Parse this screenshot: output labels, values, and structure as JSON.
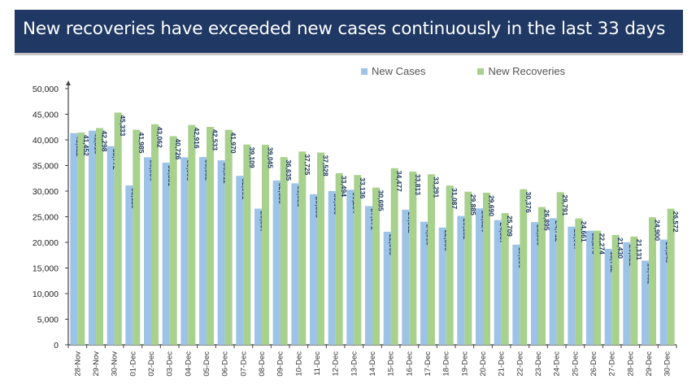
{
  "header": {
    "title": "New recoveries have exceeded new cases continuously in the last 33 days"
  },
  "colors": {
    "banner": "#1f3864",
    "new_cases": "#9dc3e6",
    "new_recoveries": "#a9d18e",
    "data_label": "#1f3864"
  },
  "chart_data": {
    "type": "bar",
    "title": "New recoveries have exceeded new cases continuously in the last 33 days",
    "xlabel": "",
    "ylabel": "",
    "ylim": [
      0,
      50000
    ],
    "yticks": [
      0,
      5000,
      10000,
      15000,
      20000,
      25000,
      30000,
      35000,
      40000,
      45000,
      50000
    ],
    "ytick_labels": [
      "0",
      "5,000",
      "10,000",
      "15,000",
      "20,000",
      "25,000",
      "30,000",
      "35,000",
      "40,000",
      "45,000",
      "50,000"
    ],
    "grid": false,
    "legend_position": "top-right",
    "categories": [
      "28-Nov",
      "29-Nov",
      "30-Nov",
      "01-Dec",
      "02-Dec",
      "03-Dec",
      "04-Dec",
      "05-Dec",
      "06-Dec",
      "07-Dec",
      "08-Dec",
      "09-Dec",
      "10-Dec",
      "11-Dec",
      "12-Dec",
      "13-Dec",
      "14-Dec",
      "15-Dec",
      "16-Dec",
      "17-Dec",
      "18-Dec",
      "19-Dec",
      "20-Dec",
      "21-Dec",
      "22-Dec",
      "23-Dec",
      "24-Dec",
      "25-Dec",
      "26-Dec",
      "27-Dec",
      "28-Dec",
      "29-Dec",
      "30-Dec"
    ],
    "series": [
      {
        "name": "New Cases",
        "values": [
          41322,
          41810,
          38772,
          31118,
          36604,
          35551,
          36595,
          36652,
          36011,
          32981,
          26567,
          32080,
          31521,
          29398,
          30006,
          30254,
          27071,
          22065,
          26382,
          24010,
          22890,
          25152,
          26624,
          24337,
          19556,
          23950,
          24712,
          23067,
          22273,
          18732,
          20021,
          16432,
          20549
        ],
        "labels": [
          "41,322",
          "41,810",
          "38,772",
          "31,118",
          "36,604",
          "35,551",
          "36,595",
          "36,652",
          "36,011",
          "32,981",
          "26,567",
          "32,080",
          "31,521",
          "29,398",
          "30,006",
          "30,254",
          "27,071",
          "22,065",
          "26,382",
          "24,010",
          "22,890",
          "25,152",
          "26,624",
          "24,337",
          "19,556",
          "23,950",
          "24,712",
          "23,067",
          "22,273",
          "18,732",
          "20,021",
          "16,432",
          "20,549"
        ]
      },
      {
        "name": "New Recoveries",
        "values": [
          41452,
          42298,
          45333,
          41985,
          43062,
          40726,
          42916,
          42533,
          41970,
          39109,
          39045,
          36635,
          37725,
          37528,
          33494,
          33136,
          30695,
          34477,
          33813,
          33291,
          31087,
          29885,
          29690,
          25709,
          30376,
          26895,
          29791,
          24661,
          22274,
          21430,
          21131,
          24900,
          26572
        ],
        "labels": [
          "41,452",
          "42,298",
          "45,333",
          "41,985",
          "43,062",
          "40,726",
          "42,916",
          "42,533",
          "41,970",
          "39,109",
          "39,045",
          "36,635",
          "37,725",
          "37,528",
          "33,494",
          "33,136",
          "30,695",
          "34,477",
          "33,813",
          "33,291",
          "31,087",
          "29,885",
          "29,690",
          "25,709",
          "30,376",
          "26,895",
          "29,791",
          "24,661",
          "22,274",
          "21,430",
          "21,131",
          "24,900",
          "26,572"
        ]
      }
    ]
  }
}
